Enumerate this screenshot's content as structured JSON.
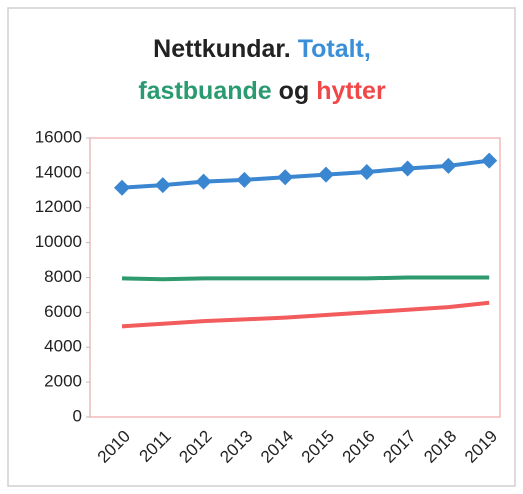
{
  "chart_data": {
    "type": "line",
    "title": [
      [
        {
          "text": "Nettkundar.",
          "color": "#222222"
        },
        {
          "text": "Totalt,",
          "color": "#3a8fd8"
        }
      ],
      [
        {
          "text": "fastbuande",
          "color": "#2a9a70"
        },
        {
          "text": "og",
          "color": "#222222"
        },
        {
          "text": "hytter",
          "color": "#f04848"
        }
      ]
    ],
    "categories": [
      "2010",
      "2011",
      "2012",
      "2013",
      "2014",
      "2015",
      "2016",
      "2017",
      "2018",
      "2019"
    ],
    "series": [
      {
        "color": "#3a86d0",
        "marker": "diamond",
        "values": [
          13150,
          13300,
          13500,
          13600,
          13750,
          13900,
          14050,
          14250,
          14400,
          14700
        ]
      },
      {
        "color": "#2f9a6e",
        "marker": "none",
        "values": [
          7950,
          7900,
          7950,
          7950,
          7950,
          7950,
          7950,
          8000,
          8000,
          8000
        ]
      },
      {
        "color": "#f25c5c",
        "marker": "none",
        "values": [
          5200,
          5350,
          5500,
          5600,
          5700,
          5850,
          6000,
          6150,
          6300,
          6550
        ]
      }
    ],
    "ylim": [
      0,
      16000
    ],
    "yticks": [
      0,
      2000,
      4000,
      6000,
      8000,
      10000,
      12000,
      14000,
      16000
    ],
    "grid": false
  }
}
